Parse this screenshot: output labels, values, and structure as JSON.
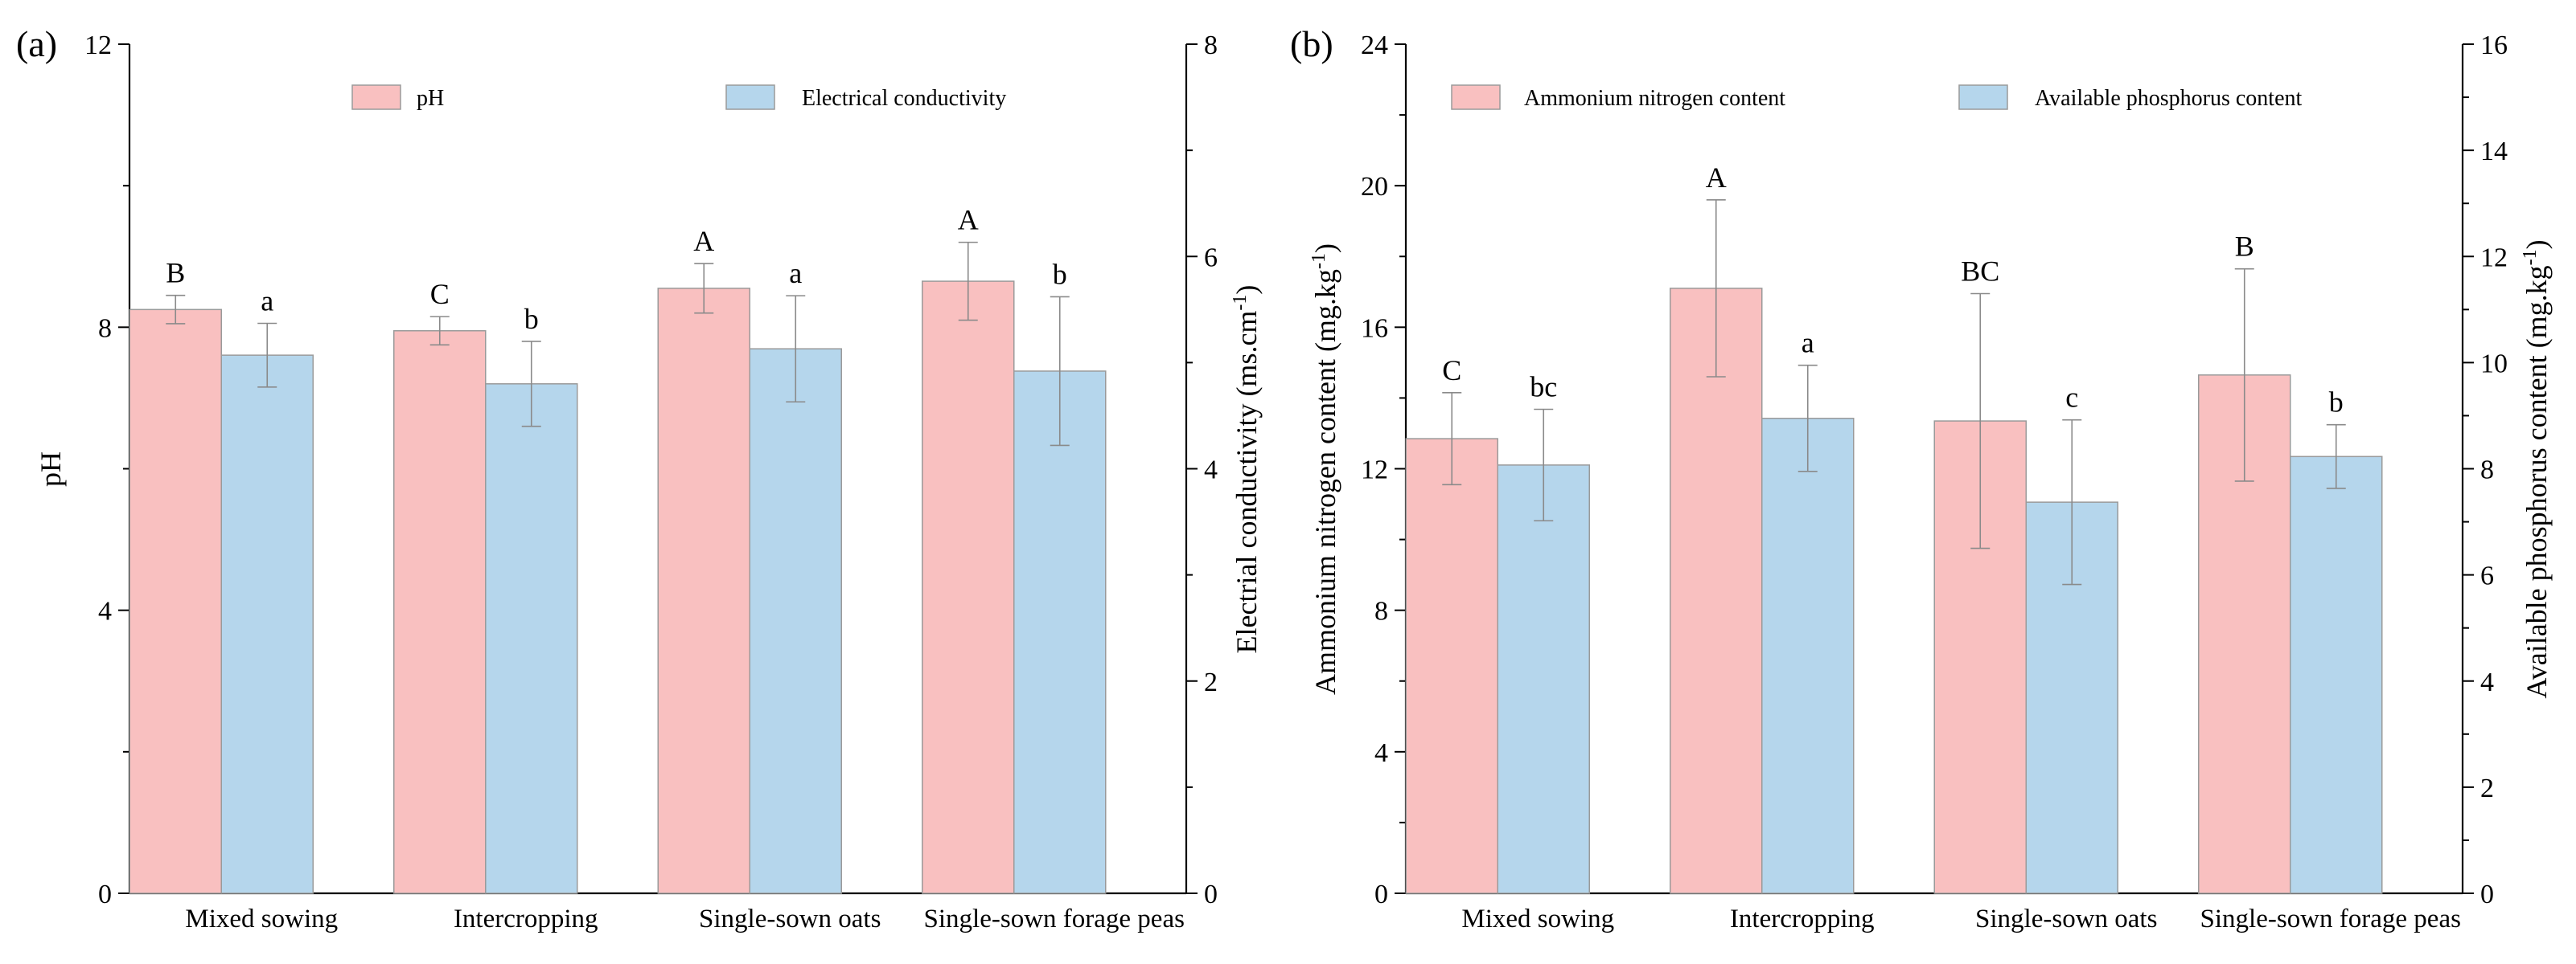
{
  "chart_data": [
    {
      "type": "bar",
      "panel_label": "(a)",
      "categories": [
        "Mixed sowing",
        "Intercropping",
        "Single-sown oats",
        "Single-sown forage peas"
      ],
      "series": [
        {
          "name": "pH",
          "axis": "left",
          "color": "#f9c0c0",
          "values": [
            8.25,
            7.95,
            8.55,
            8.65
          ],
          "errors": [
            0.2,
            0.2,
            0.35,
            0.55
          ],
          "letters": [
            "B",
            "C",
            "A",
            "A"
          ]
        },
        {
          "name": "Electrical conductivity",
          "axis": "right",
          "color": "#b5d6ec",
          "values": [
            5.07,
            4.8,
            5.13,
            4.92
          ],
          "errors": [
            0.3,
            0.4,
            0.5,
            0.7
          ],
          "letters": [
            "a",
            "b",
            "a",
            "b"
          ]
        }
      ],
      "ylabel_left": "pH",
      "ylabel_right": "Electrial conductivity (ms.cm-1)",
      "ylabel_right_main": "Electrial conductivity (ms.cm",
      "ylabel_right_sup": "-1",
      "ylabel_right_end": ")",
      "ylim_left": [
        0,
        12
      ],
      "yticks_left": [
        "0",
        "4",
        "8",
        "12"
      ],
      "ylim_right": [
        0,
        8
      ],
      "yticks_right": [
        "0",
        "2",
        "4",
        "6",
        "8"
      ],
      "legend_position": "top"
    },
    {
      "type": "bar",
      "panel_label": "(b)",
      "categories": [
        "Mixed sowing",
        "Intercropping",
        "Single-sown oats",
        "Single-sown forage peas"
      ],
      "series": [
        {
          "name": "Ammonium nitrogen content",
          "axis": "left",
          "color": "#f9c0c0",
          "values": [
            12.85,
            17.1,
            13.35,
            14.65
          ],
          "errors": [
            1.3,
            2.5,
            3.6,
            3.0
          ],
          "letters": [
            "C",
            "A",
            "BC",
            "B"
          ]
        },
        {
          "name": "Available phosphorus content",
          "axis": "right",
          "color": "#b5d6ec",
          "values": [
            8.07,
            8.95,
            7.37,
            8.23
          ],
          "errors": [
            1.05,
            1.0,
            1.55,
            0.6
          ],
          "letters": [
            "bc",
            "a",
            "c",
            "b"
          ]
        }
      ],
      "ylabel_left": "Ammonium nitrogen content (mg.kg-1)",
      "ylabel_left_main": "Ammonium nitrogen content (mg.kg",
      "ylabel_left_sup": "-1",
      "ylabel_left_end": ")",
      "ylabel_right": "Available phosphorus content (mg.kg-1)",
      "ylabel_right_main": "Available phosphorus content (mg.kg",
      "ylabel_right_sup": "-1",
      "ylabel_right_end": ")",
      "ylim_left": [
        0,
        24
      ],
      "yticks_left": [
        "0",
        "4",
        "8",
        "12",
        "16",
        "20",
        "24"
      ],
      "ylim_right": [
        0,
        16
      ],
      "yticks_right": [
        "0",
        "2",
        "4",
        "6",
        "8",
        "10",
        "12",
        "14",
        "16"
      ],
      "legend_position": "top"
    }
  ]
}
